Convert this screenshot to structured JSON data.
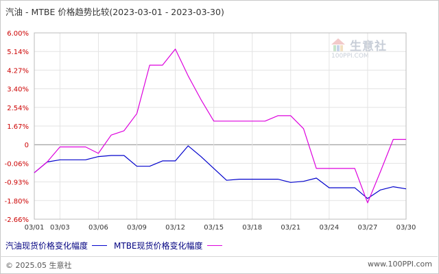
{
  "title": "汽油 - MTBE 价格趋势比较(2023-03-01 - 2023-03-30)",
  "watermark": {
    "name": "生意社",
    "url": "100PPI.COM"
  },
  "footer": {
    "copyright": "© 2025.05 生意社",
    "url": "www.100PPI.com"
  },
  "colors": {
    "series_1": "#0000cc",
    "series_2": "#dd00dd",
    "tick_y": "#cc0000",
    "grid": "#e3e3e3",
    "zero_line": "#888888"
  },
  "chart_data": {
    "type": "line",
    "title": "汽油 - MTBE 价格趋势比较(2023-03-01 - 2023-03-30)",
    "xlabel": "",
    "ylabel": "",
    "x": [
      "03/01",
      "03/02",
      "03/03",
      "03/04",
      "03/05",
      "03/06",
      "03/07",
      "03/08",
      "03/09",
      "03/10",
      "03/11",
      "03/12",
      "03/13",
      "03/14",
      "03/15",
      "03/16",
      "03/17",
      "03/18",
      "03/19",
      "03/20",
      "03/21",
      "03/22",
      "03/23",
      "03/24",
      "03/25",
      "03/26",
      "03/27",
      "03/28",
      "03/29",
      "03/30"
    ],
    "x_tick_labels": [
      "03/01",
      "03/03",
      "03/06",
      "03/09",
      "03/12",
      "03/15",
      "03/18",
      "03/21",
      "03/24",
      "03/27",
      "03/30"
    ],
    "y_tick_labels": [
      "6.00%",
      "5.14%",
      "4.27%",
      "3.40%",
      "2.54%",
      "1.67%",
      "0",
      "-0.06%",
      "-0.93%",
      "-1.80%",
      "-2.66%"
    ],
    "ylim": [
      -2.66,
      6.0
    ],
    "grid": true,
    "legend_position": "bottom-left",
    "series": [
      {
        "name": "汽油现货价格变化幅度",
        "color": "#0000cc",
        "values": [
          -0.5,
          0.0,
          0.1,
          0.1,
          0.1,
          0.25,
          0.3,
          0.3,
          -0.2,
          -0.2,
          0.05,
          0.05,
          0.75,
          0.25,
          -0.3,
          -0.85,
          -0.8,
          -0.8,
          -0.8,
          -0.8,
          -0.95,
          -0.9,
          -0.75,
          -1.2,
          -1.2,
          -1.2,
          -1.7,
          -1.3,
          -1.15,
          -1.25
        ]
      },
      {
        "name": "MTBE现货价格变化幅度",
        "color": "#dd00dd",
        "values": [
          -0.5,
          0.0,
          0.7,
          0.7,
          0.7,
          0.4,
          1.25,
          1.45,
          2.25,
          4.5,
          4.5,
          5.25,
          4.0,
          2.9,
          1.9,
          1.9,
          1.9,
          1.9,
          1.9,
          2.15,
          2.15,
          1.55,
          -0.3,
          -0.3,
          -0.3,
          -0.3,
          -1.9,
          -0.45,
          1.05,
          1.05
        ]
      }
    ]
  }
}
